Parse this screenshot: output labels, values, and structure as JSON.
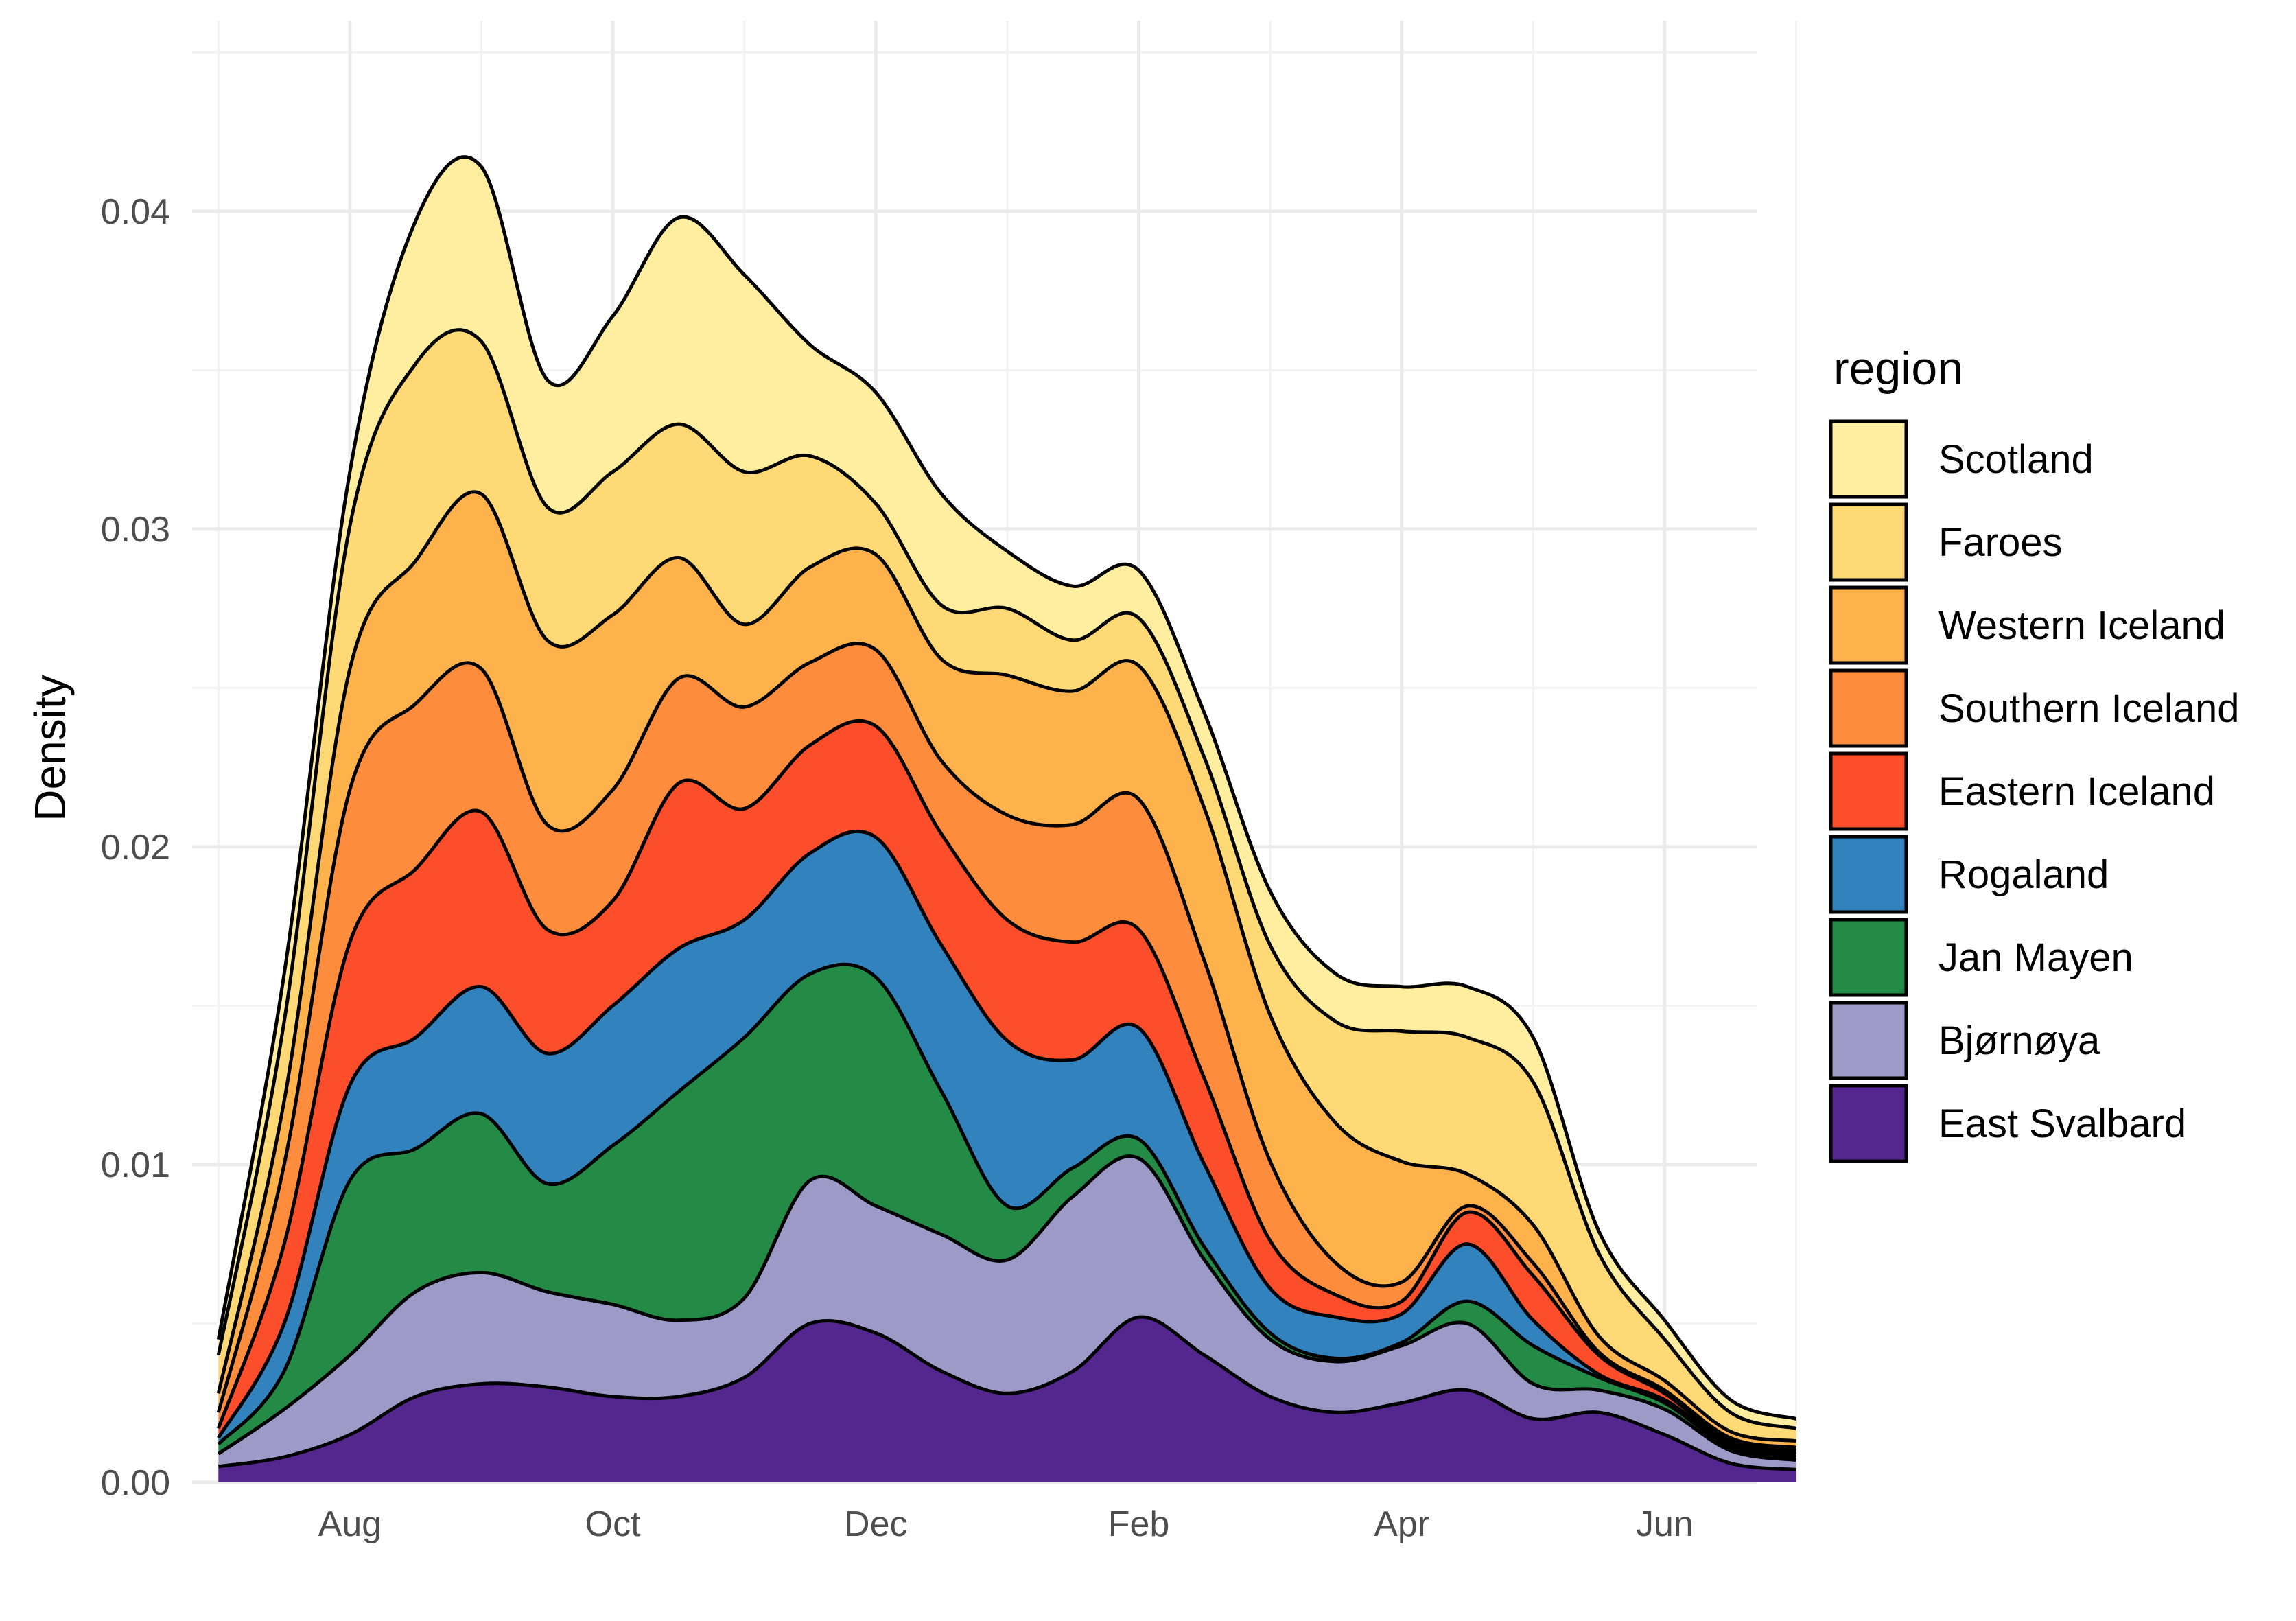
{
  "chart_data": {
    "type": "area",
    "subtype": "stacked-density",
    "title": "",
    "xlabel": "",
    "ylabel": "Density",
    "x_unit": "month",
    "xlim": [
      6.4,
      12.35
    ],
    "ylim": [
      0,
      0.046
    ],
    "x_ticks": [
      {
        "value": 7,
        "label": "Aug"
      },
      {
        "value": 8,
        "label": "Oct"
      },
      {
        "value": 9,
        "label": "Dec"
      },
      {
        "value": 10,
        "label": "Feb"
      },
      {
        "value": 11,
        "label": "Apr"
      },
      {
        "value": 12,
        "label": "Jun"
      }
    ],
    "y_ticks": [
      {
        "value": 0.0,
        "label": "0.00"
      },
      {
        "value": 0.01,
        "label": "0.01"
      },
      {
        "value": 0.02,
        "label": "0.02"
      },
      {
        "value": 0.03,
        "label": "0.03"
      },
      {
        "value": 0.04,
        "label": "0.04"
      }
    ],
    "grid": true,
    "legend_title": "region",
    "legend_position": "right",
    "legend_order": [
      "Scotland",
      "Faroes",
      "Western Iceland",
      "Southern Iceland",
      "Eastern Iceland",
      "Rogaland",
      "Jan Mayen",
      "Bjørnøya",
      "East Svalbard"
    ],
    "x": [
      6.5,
      6.75,
      7.0,
      7.25,
      7.5,
      7.75,
      8.0,
      8.25,
      8.5,
      8.75,
      9.0,
      9.25,
      9.5,
      9.75,
      10.0,
      10.25,
      10.5,
      10.75,
      11.0,
      11.25,
      11.5,
      11.75,
      12.0,
      12.25,
      12.5
    ],
    "series": [
      {
        "name": "East Svalbard",
        "color": "#54278f",
        "values": [
          0.0005,
          0.0008,
          0.0015,
          0.0027,
          0.0031,
          0.003,
          0.0027,
          0.0027,
          0.0033,
          0.005,
          0.0047,
          0.0035,
          0.0028,
          0.0035,
          0.0052,
          0.004,
          0.0027,
          0.0022,
          0.0025,
          0.0029,
          0.002,
          0.0022,
          0.0015,
          0.0006,
          0.0004
        ]
      },
      {
        "name": "Bjørnøya",
        "color": "#9e9ac8",
        "values": [
          0.0004,
          0.0015,
          0.0025,
          0.0033,
          0.0035,
          0.003,
          0.0029,
          0.0024,
          0.0025,
          0.0045,
          0.004,
          0.0043,
          0.0042,
          0.0055,
          0.005,
          0.003,
          0.0018,
          0.0016,
          0.0018,
          0.0021,
          0.0011,
          0.0007,
          0.0008,
          0.0004,
          0.0003
        ]
      },
      {
        "name": "Jan Mayen",
        "color": "#238b45",
        "values": [
          0.0003,
          0.0012,
          0.0055,
          0.0045,
          0.005,
          0.0034,
          0.005,
          0.0072,
          0.0082,
          0.0065,
          0.0072,
          0.0045,
          0.0017,
          0.0009,
          0.0006,
          0.0004,
          0.0002,
          0.0001,
          0.0001,
          0.0007,
          0.0012,
          0.0004,
          0.0002,
          0.0001,
          0.0001
        ]
      },
      {
        "name": "Rogaland",
        "color": "#3182bd",
        "values": [
          0.0002,
          0.0015,
          0.003,
          0.0035,
          0.004,
          0.0041,
          0.0044,
          0.0045,
          0.0037,
          0.0038,
          0.0044,
          0.0046,
          0.0052,
          0.0034,
          0.0035,
          0.0026,
          0.0014,
          0.0013,
          0.0009,
          0.0018,
          0.0008,
          0.0001,
          0.0001,
          0.0001,
          0.0001
        ]
      },
      {
        "name": "Eastern Iceland",
        "color": "#fc4e2a",
        "values": [
          0.0003,
          0.0025,
          0.0045,
          0.0053,
          0.0055,
          0.0039,
          0.0033,
          0.0052,
          0.0035,
          0.0034,
          0.0035,
          0.0035,
          0.0038,
          0.0037,
          0.0031,
          0.0027,
          0.0015,
          0.0007,
          0.0004,
          0.001,
          0.0014,
          0.0006,
          0.0002,
          0.0001,
          0.0001
        ]
      },
      {
        "name": "Southern Iceland",
        "color": "#fd8d3c",
        "values": [
          0.0005,
          0.0025,
          0.0048,
          0.0052,
          0.0045,
          0.0033,
          0.0035,
          0.0033,
          0.0032,
          0.0026,
          0.0024,
          0.0023,
          0.0033,
          0.0037,
          0.0041,
          0.0037,
          0.0025,
          0.001,
          0.0006,
          0.0002,
          0.0004,
          0.0001,
          0.0001,
          0.0001,
          0.0001
        ]
      },
      {
        "name": "Western Iceland",
        "color": "#feb24c",
        "values": [
          0.0006,
          0.002,
          0.0038,
          0.0045,
          0.0055,
          0.0058,
          0.0055,
          0.0038,
          0.0026,
          0.003,
          0.003,
          0.0032,
          0.0044,
          0.0042,
          0.0042,
          0.0048,
          0.0046,
          0.0044,
          0.0038,
          0.001,
          0.0012,
          0.0005,
          0.0003,
          0.0002,
          0.0002
        ]
      },
      {
        "name": "Faroes",
        "color": "#fed976",
        "values": [
          0.0012,
          0.0025,
          0.0045,
          0.0062,
          0.0048,
          0.0042,
          0.0045,
          0.0042,
          0.0048,
          0.0035,
          0.0016,
          0.0017,
          0.0021,
          0.0016,
          0.0015,
          0.0016,
          0.0022,
          0.0032,
          0.0041,
          0.0043,
          0.0045,
          0.0026,
          0.0013,
          0.0006,
          0.0004
        ]
      },
      {
        "name": "Scotland",
        "color": "#ffeda0",
        "values": [
          0.0005,
          0.0015,
          0.0017,
          0.0045,
          0.0055,
          0.004,
          0.0049,
          0.0065,
          0.0062,
          0.0035,
          0.0035,
          0.0035,
          0.0018,
          0.0017,
          0.0015,
          0.0014,
          0.0017,
          0.0015,
          0.0014,
          0.0016,
          0.0014,
          0.0007,
          0.0006,
          0.0004,
          0.0003
        ]
      }
    ]
  }
}
